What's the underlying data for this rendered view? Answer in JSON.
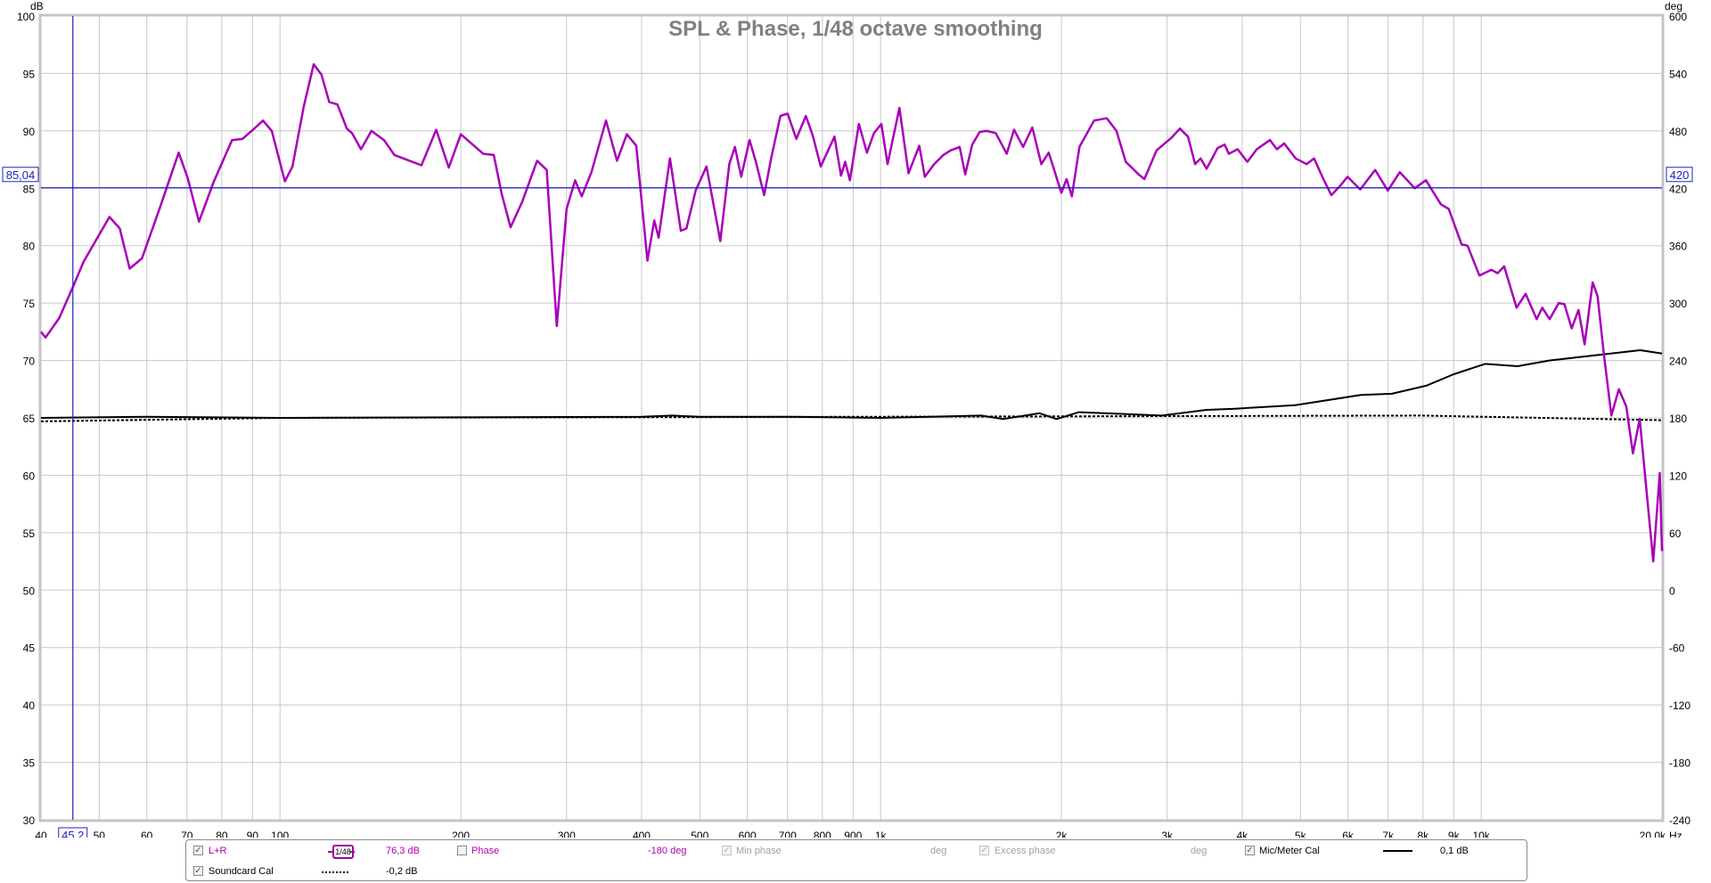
{
  "chart_data": {
    "type": "line",
    "title": "SPL & Phase, 1/48 octave smoothing",
    "xscale": "log",
    "xlim": [
      40,
      20000
    ],
    "ylim": [
      30,
      100
    ],
    "y2lim": [
      -240,
      600
    ],
    "yunit": "dB",
    "y2unit": "deg",
    "xunit": "Hz",
    "grid": true,
    "x_ticks": [
      {
        "v": 40,
        "label": "40"
      },
      {
        "v": 50,
        "label": "50"
      },
      {
        "v": 60,
        "label": "60"
      },
      {
        "v": 70,
        "label": "70"
      },
      {
        "v": 80,
        "label": "80"
      },
      {
        "v": 90,
        "label": "90"
      },
      {
        "v": 100,
        "label": "100"
      },
      {
        "v": 200,
        "label": "200"
      },
      {
        "v": 300,
        "label": "300"
      },
      {
        "v": 400,
        "label": "400"
      },
      {
        "v": 500,
        "label": "500"
      },
      {
        "v": 600,
        "label": "600"
      },
      {
        "v": 700,
        "label": "700"
      },
      {
        "v": 800,
        "label": "800"
      },
      {
        "v": 900,
        "label": "900"
      },
      {
        "v": 1000,
        "label": "1k"
      },
      {
        "v": 2000,
        "label": "2k"
      },
      {
        "v": 3000,
        "label": "3k"
      },
      {
        "v": 4000,
        "label": "4k"
      },
      {
        "v": 5000,
        "label": "5k"
      },
      {
        "v": 6000,
        "label": "6k"
      },
      {
        "v": 7000,
        "label": "7k"
      },
      {
        "v": 8000,
        "label": "8k"
      },
      {
        "v": 9000,
        "label": "9k"
      },
      {
        "v": 10000,
        "label": "10k"
      },
      {
        "v": 20000,
        "label": "20,0k"
      }
    ],
    "y_ticks": [
      "30",
      "35",
      "40",
      "45",
      "50",
      "55",
      "60",
      "65",
      "70",
      "75",
      "80",
      "85",
      "90",
      "95",
      "100"
    ],
    "y2_ticks": [
      "-240",
      "-180",
      "-120",
      "-60",
      "0",
      "60",
      "120",
      "180",
      "240",
      "300",
      "360",
      "420",
      "480",
      "540",
      "600"
    ],
    "cursor": {
      "x": 45.2,
      "x_label": "45,2",
      "y": 85.04,
      "y_label": "85,04",
      "y2_label": "420",
      "color": "#2020c0"
    },
    "series": [
      {
        "name": "L+R",
        "color": "#a800b8",
        "points": [
          [
            40,
            72.5
          ],
          [
            40.7,
            72.0
          ],
          [
            42.9,
            73.7
          ],
          [
            45.2,
            76.4
          ],
          [
            47.1,
            78.6
          ],
          [
            52,
            82.5
          ],
          [
            54.1,
            81.5
          ],
          [
            56.2,
            78.0
          ],
          [
            58.9,
            78.9
          ],
          [
            63.1,
            83.3
          ],
          [
            67.8,
            88.1
          ],
          [
            70.2,
            85.9
          ],
          [
            73.3,
            82.1
          ],
          [
            77.6,
            85.6
          ],
          [
            83.2,
            89.2
          ],
          [
            86.6,
            89.3
          ],
          [
            90.6,
            90.2
          ],
          [
            93.7,
            90.9
          ],
          [
            96.9,
            90.0
          ],
          [
            101.9,
            85.6
          ],
          [
            104.9,
            86.9
          ],
          [
            109.5,
            92.1
          ],
          [
            113.8,
            95.8
          ],
          [
            117.2,
            94.9
          ],
          [
            120.8,
            92.5
          ],
          [
            124.6,
            92.3
          ],
          [
            129.2,
            90.2
          ],
          [
            131.8,
            89.8
          ],
          [
            136.4,
            88.4
          ],
          [
            142,
            90.0
          ],
          [
            149,
            89.2
          ],
          [
            155,
            87.9
          ],
          [
            166,
            87.3
          ],
          [
            172,
            87.0
          ],
          [
            182,
            90.1
          ],
          [
            191,
            86.8
          ],
          [
            200,
            89.7
          ],
          [
            218,
            88.0
          ],
          [
            227,
            87.9
          ],
          [
            234,
            84.5
          ],
          [
            242,
            81.6
          ],
          [
            253,
            83.8
          ],
          [
            268,
            87.4
          ],
          [
            278,
            86.6
          ],
          [
            289,
            73.0
          ],
          [
            300,
            83.2
          ],
          [
            310,
            85.7
          ],
          [
            318,
            84.3
          ],
          [
            330,
            86.4
          ],
          [
            349,
            90.9
          ],
          [
            364,
            87.4
          ],
          [
            378,
            89.7
          ],
          [
            392,
            88.7
          ],
          [
            409,
            78.7
          ],
          [
            420,
            82.2
          ],
          [
            427,
            80.7
          ],
          [
            446,
            87.6
          ],
          [
            465,
            81.3
          ],
          [
            475,
            81.5
          ],
          [
            492,
            84.8
          ],
          [
            513,
            86.9
          ],
          [
            541,
            80.4
          ],
          [
            560,
            87.1
          ],
          [
            572,
            88.6
          ],
          [
            586,
            86.0
          ],
          [
            605,
            89.2
          ],
          [
            620,
            87.3
          ],
          [
            640,
            84.4
          ],
          [
            658,
            87.7
          ],
          [
            681,
            91.3
          ],
          [
            700,
            91.5
          ],
          [
            724,
            89.3
          ],
          [
            751,
            91.3
          ],
          [
            771,
            89.6
          ],
          [
            795,
            86.9
          ],
          [
            838,
            89.5
          ],
          [
            859,
            86.1
          ],
          [
            873,
            87.3
          ],
          [
            889,
            85.7
          ],
          [
            920,
            90.6
          ],
          [
            949,
            88.1
          ],
          [
            975,
            89.8
          ],
          [
            1003,
            90.6
          ],
          [
            1027,
            87.1
          ],
          [
            1075,
            92.0
          ],
          [
            1113,
            86.3
          ],
          [
            1160,
            88.7
          ],
          [
            1185,
            86.0
          ],
          [
            1228,
            87.1
          ],
          [
            1272,
            87.9
          ],
          [
            1308,
            88.3
          ],
          [
            1354,
            88.6
          ],
          [
            1383,
            86.2
          ],
          [
            1421,
            88.8
          ],
          [
            1462,
            89.9
          ],
          [
            1502,
            90.0
          ],
          [
            1555,
            89.8
          ],
          [
            1622,
            88.0
          ],
          [
            1668,
            90.1
          ],
          [
            1727,
            88.6
          ],
          [
            1789,
            90.3
          ],
          [
            1852,
            87.1
          ],
          [
            1905,
            88.1
          ],
          [
            2000,
            84.6
          ],
          [
            2040,
            85.8
          ],
          [
            2082,
            84.3
          ],
          [
            2143,
            88.6
          ],
          [
            2267,
            90.9
          ],
          [
            2380,
            91.1
          ],
          [
            2470,
            90.0
          ],
          [
            2560,
            87.3
          ],
          [
            2690,
            86.2
          ],
          [
            2750,
            85.8
          ],
          [
            2880,
            88.3
          ],
          [
            3050,
            89.4
          ],
          [
            3150,
            90.2
          ],
          [
            3250,
            89.5
          ],
          [
            3340,
            87.1
          ],
          [
            3410,
            87.6
          ],
          [
            3490,
            86.7
          ],
          [
            3640,
            88.5
          ],
          [
            3740,
            88.8
          ],
          [
            3800,
            88.0
          ],
          [
            3930,
            88.4
          ],
          [
            4080,
            87.3
          ],
          [
            4230,
            88.4
          ],
          [
            4450,
            89.2
          ],
          [
            4570,
            88.4
          ],
          [
            4700,
            88.9
          ],
          [
            4910,
            87.6
          ],
          [
            5120,
            87.1
          ],
          [
            5270,
            87.6
          ],
          [
            5460,
            85.8
          ],
          [
            5630,
            84.4
          ],
          [
            5820,
            85.2
          ],
          [
            5990,
            86.0
          ],
          [
            6290,
            84.9
          ],
          [
            6660,
            86.6
          ],
          [
            6990,
            84.8
          ],
          [
            7320,
            86.4
          ],
          [
            7750,
            85.0
          ],
          [
            8090,
            85.7
          ],
          [
            8570,
            83.6
          ],
          [
            8830,
            83.2
          ],
          [
            9280,
            80.1
          ],
          [
            9490,
            80.0
          ],
          [
            9930,
            77.4
          ],
          [
            10400,
            77.9
          ],
          [
            10650,
            77.6
          ],
          [
            10920,
            78.2
          ],
          [
            11450,
            74.6
          ],
          [
            11860,
            75.8
          ],
          [
            12370,
            73.6
          ],
          [
            12640,
            74.6
          ],
          [
            13000,
            73.6
          ],
          [
            13460,
            75.0
          ],
          [
            13760,
            74.9
          ],
          [
            14150,
            72.8
          ],
          [
            14520,
            74.4
          ],
          [
            14870,
            71.4
          ],
          [
            15330,
            76.8
          ],
          [
            15620,
            75.6
          ],
          [
            16000,
            70.6
          ],
          [
            16470,
            65.2
          ],
          [
            16950,
            67.5
          ],
          [
            17440,
            66.0
          ],
          [
            17890,
            61.9
          ],
          [
            18360,
            64.9
          ],
          [
            19340,
            52.5
          ],
          [
            19830,
            60.2
          ],
          [
            20000,
            53.4
          ]
        ]
      },
      {
        "name": "Mic/Meter Cal",
        "color": "#000000",
        "dash": "solid",
        "points": [
          [
            40,
            65.0
          ],
          [
            60,
            65.1
          ],
          [
            100,
            65.0
          ],
          [
            400,
            65.1
          ],
          [
            450,
            65.2
          ],
          [
            500,
            65.1
          ],
          [
            700,
            65.1
          ],
          [
            1000,
            65.0
          ],
          [
            1470,
            65.2
          ],
          [
            1600,
            64.9
          ],
          [
            1840,
            65.4
          ],
          [
            1963,
            64.9
          ],
          [
            2140,
            65.5
          ],
          [
            2940,
            65.2
          ],
          [
            3490,
            65.7
          ],
          [
            3890,
            65.8
          ],
          [
            4900,
            66.1
          ],
          [
            5470,
            66.5
          ],
          [
            6310,
            67.0
          ],
          [
            7100,
            67.1
          ],
          [
            8100,
            67.8
          ],
          [
            9000,
            68.8
          ],
          [
            10150,
            69.7
          ],
          [
            11500,
            69.5
          ],
          [
            12980,
            70.0
          ],
          [
            15200,
            70.4
          ],
          [
            18400,
            70.9
          ],
          [
            20000,
            70.6
          ]
        ]
      },
      {
        "name": "Soundcard Cal",
        "color": "#000000",
        "dash": "dotted",
        "points": [
          [
            40,
            64.7
          ],
          [
            100,
            65.0
          ],
          [
            1000,
            65.1
          ],
          [
            8000,
            65.2
          ],
          [
            20000,
            64.8
          ]
        ]
      }
    ]
  },
  "legend": {
    "rows": [
      {
        "checked": true,
        "label": "L+R",
        "smoothing_num": "1",
        "smoothing_den": "48",
        "value": "76,3 dB"
      },
      {
        "checked": true,
        "label": "Soundcard Cal",
        "value": "-0,2 dB"
      }
    ],
    "phase": {
      "checked": false,
      "label": "Phase",
      "value": "-180 deg"
    },
    "min_phase": {
      "checked": true,
      "disabled": true,
      "label": "Min phase",
      "value": "deg"
    },
    "excess_phase": {
      "checked": true,
      "disabled": true,
      "label": "Excess phase",
      "value": "deg"
    },
    "mic_cal": {
      "checked": true,
      "label": "Mic/Meter Cal",
      "value": "0,1 dB"
    }
  }
}
